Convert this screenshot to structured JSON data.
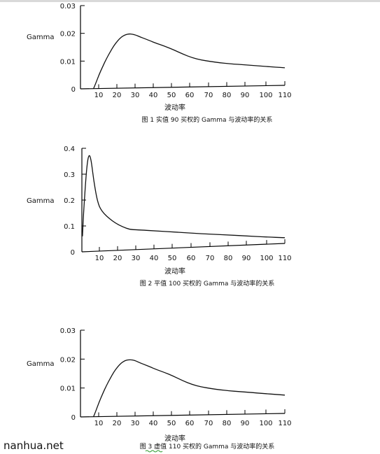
{
  "x_axis_title": "波动率",
  "y_axis_title": "Gamma",
  "watermark": "nanhua.net",
  "colors": {
    "ink": "#111111",
    "axis": "#000000",
    "spellcheck_underline": "#2e9b2e"
  },
  "chart_data": [
    {
      "type": "line",
      "caption": "图 1  实值 90 买权的 Gamma 与波动率的关系",
      "xlabel": "波动率",
      "ylabel": "Gamma",
      "x_ticks": [
        "10",
        "20",
        "30",
        "40",
        "50",
        "60",
        "70",
        "80",
        "90",
        "100",
        "110"
      ],
      "y_ticks": [
        "0",
        "0.01",
        "0.02",
        "0.03"
      ],
      "xlim": [
        0,
        110
      ],
      "ylim": [
        0,
        0.03
      ],
      "grid": false,
      "series": [
        {
          "x": [
            7,
            8,
            10,
            12,
            14,
            16,
            18,
            20,
            22,
            24,
            26,
            28,
            30,
            32,
            35,
            38,
            40,
            45,
            50,
            55,
            60,
            65,
            70,
            75,
            80,
            85,
            90,
            95,
            100,
            105,
            110
          ],
          "y": [
            0,
            0.0015,
            0.005,
            0.008,
            0.0108,
            0.0132,
            0.0155,
            0.0172,
            0.0186,
            0.0194,
            0.0197,
            0.0196,
            0.0192,
            0.0186,
            0.0178,
            0.017,
            0.0164,
            0.0152,
            0.0138,
            0.0122,
            0.0108,
            0.0099,
            0.0093,
            0.0088,
            0.0084,
            0.0081,
            0.0078,
            0.0075,
            0.0072,
            0.0069,
            0.0066
          ]
        }
      ]
    },
    {
      "type": "line",
      "caption": "图 2  平值 100 买权的 Gamma 与波动率的关系",
      "xlabel": "波动率",
      "ylabel": "Gamma",
      "x_ticks": [
        "10",
        "20",
        "30",
        "40",
        "50",
        "60",
        "70",
        "80",
        "90",
        "100",
        "110"
      ],
      "y_ticks": [
        "0",
        "0.1",
        "0.2",
        "0.3",
        "0.4"
      ],
      "xlim": [
        0,
        110
      ],
      "ylim": [
        0,
        0.4
      ],
      "grid": false,
      "series": [
        {
          "x": [
            0.3,
            1,
            2,
            3,
            4,
            5,
            6,
            7,
            8,
            9,
            10,
            12,
            15,
            18,
            22,
            26,
            30,
            40,
            50,
            60,
            70,
            80,
            90,
            100,
            110
          ],
          "y": [
            0.06,
            0.16,
            0.27,
            0.35,
            0.378,
            0.355,
            0.3,
            0.25,
            0.21,
            0.183,
            0.165,
            0.145,
            0.125,
            0.108,
            0.092,
            0.08,
            0.078,
            0.071,
            0.064,
            0.057,
            0.05,
            0.044,
            0.037,
            0.03,
            0.024
          ]
        }
      ]
    },
    {
      "type": "line",
      "caption": "图 3  虚值 110 买权的 Gamma 与波动率的关系",
      "xlabel": "波动率",
      "ylabel": "Gamma",
      "x_ticks": [
        "10",
        "20",
        "30",
        "40",
        "50",
        "60",
        "70",
        "80",
        "90",
        "100",
        "110"
      ],
      "y_ticks": [
        "0",
        "0.01",
        "0.02",
        "0.03"
      ],
      "xlim": [
        0,
        110
      ],
      "ylim": [
        0,
        0.03
      ],
      "grid": false,
      "series": [
        {
          "x": [
            7,
            8,
            10,
            12,
            14,
            16,
            18,
            20,
            22,
            24,
            26,
            28,
            30,
            32,
            35,
            38,
            40,
            45,
            50,
            55,
            60,
            65,
            70,
            75,
            80,
            85,
            90,
            95,
            100,
            105,
            110
          ],
          "y": [
            0,
            0.0015,
            0.005,
            0.008,
            0.0108,
            0.0132,
            0.0155,
            0.0172,
            0.0186,
            0.0194,
            0.0197,
            0.0196,
            0.0192,
            0.0186,
            0.0178,
            0.017,
            0.0164,
            0.0152,
            0.0138,
            0.0122,
            0.0108,
            0.0099,
            0.0093,
            0.0088,
            0.0084,
            0.0081,
            0.0078,
            0.0075,
            0.0072,
            0.0069,
            0.0066
          ]
        }
      ]
    }
  ]
}
